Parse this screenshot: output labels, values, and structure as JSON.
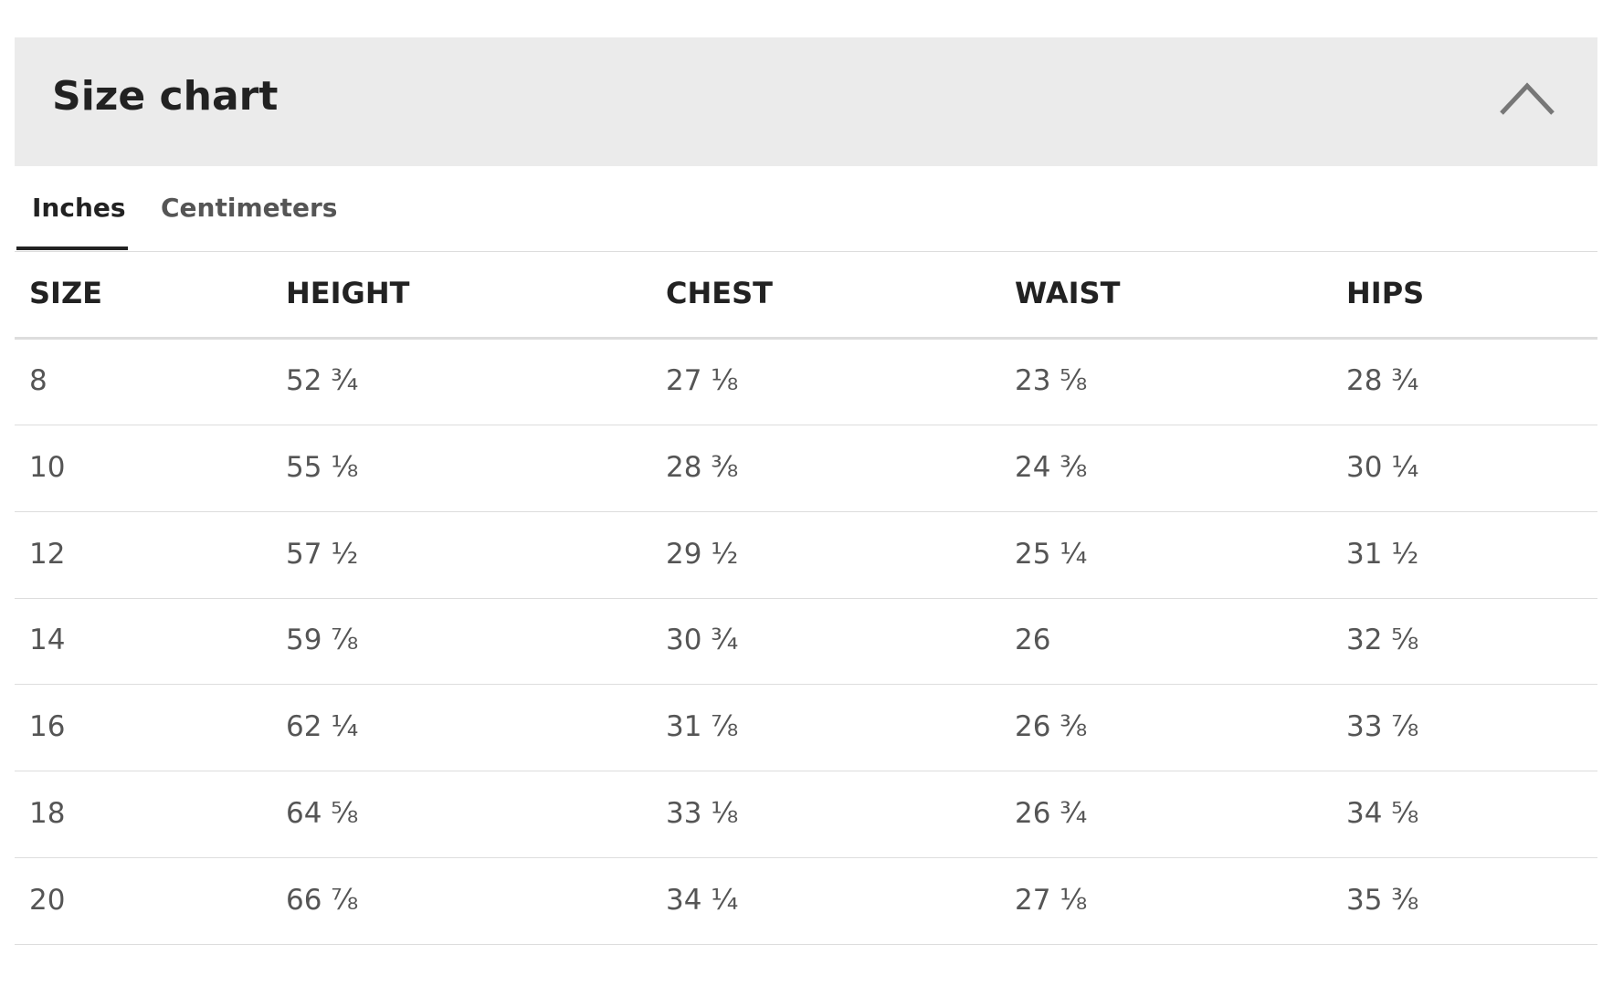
{
  "header": {
    "title": "Size chart"
  },
  "tabs": [
    "Inches",
    "Centimeters"
  ],
  "table": {
    "columns": [
      "SIZE",
      "HEIGHT",
      "CHEST",
      "WAIST",
      "HIPS"
    ],
    "rows": [
      [
        "8",
        "52 ¾",
        "27 ⅛",
        "23 ⅝",
        "28 ¾"
      ],
      [
        "10",
        "55 ⅛",
        "28 ⅜",
        "24 ⅜",
        "30 ¼"
      ],
      [
        "12",
        "57 ½",
        "29 ½",
        "25 ¼",
        "31 ½"
      ],
      [
        "14",
        "59 ⅞",
        "30 ¾",
        "26",
        "32 ⅝"
      ],
      [
        "16",
        "62 ¼",
        "31 ⅞",
        "26 ⅜",
        "33 ⅞"
      ],
      [
        "18",
        "64 ⅝",
        "33 ⅛",
        "26 ¾",
        "34 ⅝"
      ],
      [
        "20",
        "66 ⅞",
        "34 ¼",
        "27 ⅛",
        "35 ⅜"
      ]
    ]
  }
}
